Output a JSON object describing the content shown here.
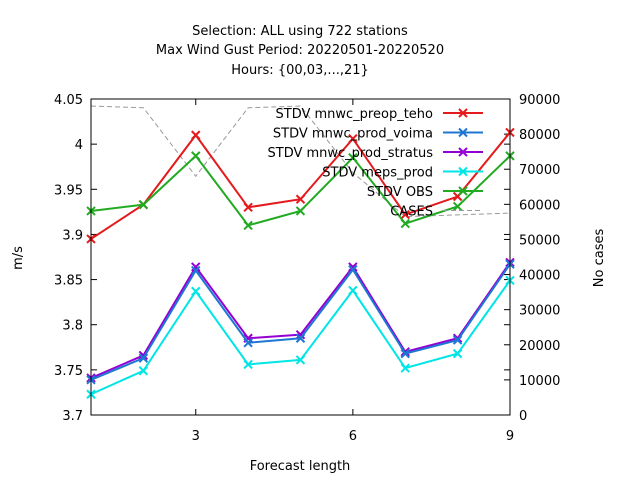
{
  "title_lines": [
    "Selection: ALL using   722 stations",
    "Max Wind Gust   Period: 20220501-20220520",
    "Hours: {00,03,...,21}"
  ],
  "chart_data": {
    "type": "line",
    "title": "Selection: ALL using   722 stations",
    "subtitle": "Max Wind Gust   Period: 20220501-20220520",
    "hours_label": "Hours: {00,03,...,21}",
    "xlabel": "Forecast length",
    "ylabel": "m/s",
    "y2label": "No cases",
    "xlim": [
      1,
      9
    ],
    "ylim": [
      3.7,
      4.05
    ],
    "y2lim": [
      0,
      90000
    ],
    "x": [
      1,
      2,
      3,
      4,
      5,
      6,
      7,
      8,
      9
    ],
    "x_ticks": [
      "3",
      "6",
      "9"
    ],
    "y_ticks": [
      "3.7",
      "3.75",
      "3.8",
      "3.85",
      "3.9",
      "3.95",
      "4",
      "4.05"
    ],
    "y2_ticks": [
      "0",
      "10000",
      "20000",
      "30000",
      "40000",
      "50000",
      "60000",
      "70000",
      "80000",
      "90000"
    ],
    "legend_position": "top-right",
    "grid": false,
    "series": [
      {
        "name": "STDV mnwc_preop_teho",
        "color": "#e41a1c",
        "axis": "y1",
        "marker": "x",
        "values": [
          3.895,
          3.933,
          4.01,
          3.93,
          3.939,
          4.006,
          3.922,
          3.942,
          4.013
        ]
      },
      {
        "name": "STDV mnwc_prod_voima",
        "color": "#1f77d4",
        "axis": "y1",
        "marker": "x",
        "values": [
          3.739,
          3.763,
          3.86,
          3.78,
          3.785,
          3.861,
          3.768,
          3.783,
          3.867
        ]
      },
      {
        "name": "STDV mnwc_prod_stratus",
        "color": "#9400d3",
        "axis": "y1",
        "marker": "x",
        "values": [
          3.741,
          3.766,
          3.864,
          3.785,
          3.789,
          3.864,
          3.77,
          3.785,
          3.869
        ]
      },
      {
        "name": "STDV meps_prod",
        "color": "#00e5e5",
        "axis": "y1",
        "marker": "x",
        "values": [
          3.723,
          3.749,
          3.837,
          3.756,
          3.761,
          3.838,
          3.752,
          3.768,
          3.849
        ]
      },
      {
        "name": "STDV OBS",
        "color": "#22aa22",
        "axis": "y1",
        "marker": "x",
        "values": [
          3.926,
          3.933,
          3.987,
          3.91,
          3.926,
          3.985,
          3.912,
          3.931,
          3.987
        ]
      },
      {
        "name": "CASES",
        "color": "#999999",
        "axis": "y2",
        "marker": "none",
        "dash": true,
        "values": [
          88000,
          87500,
          68000,
          87500,
          88000,
          69000,
          56500,
          57000,
          57500
        ]
      }
    ]
  }
}
